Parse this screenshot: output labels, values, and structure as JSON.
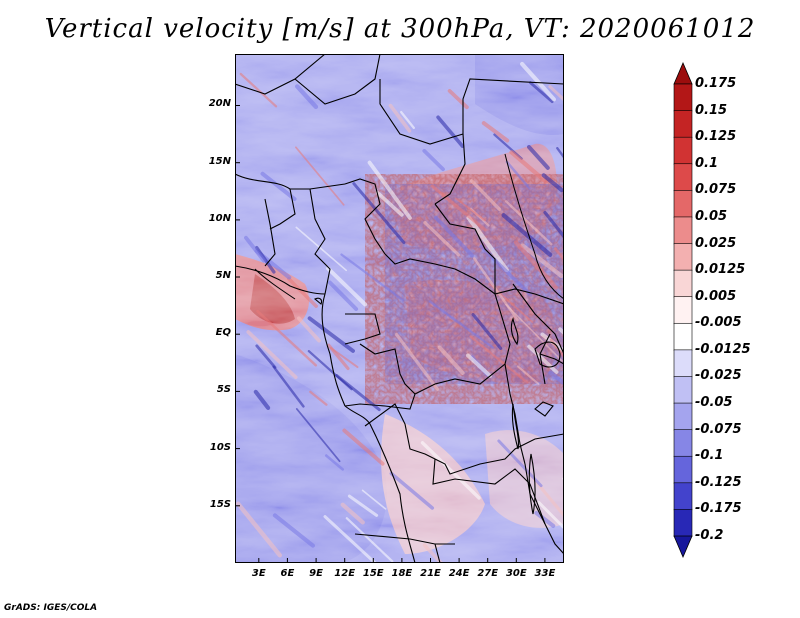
{
  "figure": {
    "title": "Vertical velocity [m/s] at 300hPa, VT: 2020061012",
    "credit": "GrADS: IGES/COLA"
  },
  "map": {
    "lat_labels": [
      "20N",
      "15N",
      "10N",
      "5N",
      "EQ",
      "5S",
      "10S",
      "15S"
    ],
    "lat_values": [
      20,
      15,
      10,
      5,
      0,
      -5,
      -10,
      -15
    ],
    "lon_labels": [
      "3E",
      "6E",
      "9E",
      "12E",
      "15E",
      "18E",
      "21E",
      "24E",
      "27E",
      "30E",
      "33E"
    ],
    "lon_values": [
      3,
      6,
      9,
      12,
      15,
      18,
      21,
      24,
      27,
      30,
      33
    ],
    "lon_range": [
      0.5,
      35
    ],
    "lat_range": [
      -20,
      24.5
    ],
    "colors": {
      "neg_strong": "#2a2aa8",
      "neg_mid": "#7a7ae6",
      "neg_weak": "#b9b9f2",
      "neutral": "#ffffff",
      "pos_weak": "#f5c2c2",
      "pos_mid": "#e87a7a",
      "pos_strong": "#b01d1d"
    }
  },
  "colorbar": {
    "levels": [
      "0.175",
      "0.15",
      "0.125",
      "0.1",
      "0.075",
      "0.05",
      "0.025",
      "0.0125",
      "0.005",
      "-0.005",
      "-0.0125",
      "-0.025",
      "-0.05",
      "-0.075",
      "-0.1",
      "-0.125",
      "-0.175",
      "-0.2"
    ],
    "colors": [
      "#9c0d0d",
      "#b31717",
      "#c42424",
      "#d13333",
      "#dd4a4a",
      "#e46868",
      "#ec8c8c",
      "#f3b0b0",
      "#f9d6d6",
      "#fff2f2",
      "#ffffff",
      "#dcdcfa",
      "#c0c0f4",
      "#a4a4ee",
      "#8686e6",
      "#6565dc",
      "#4343cc",
      "#2828b6",
      "#17179c"
    ]
  }
}
